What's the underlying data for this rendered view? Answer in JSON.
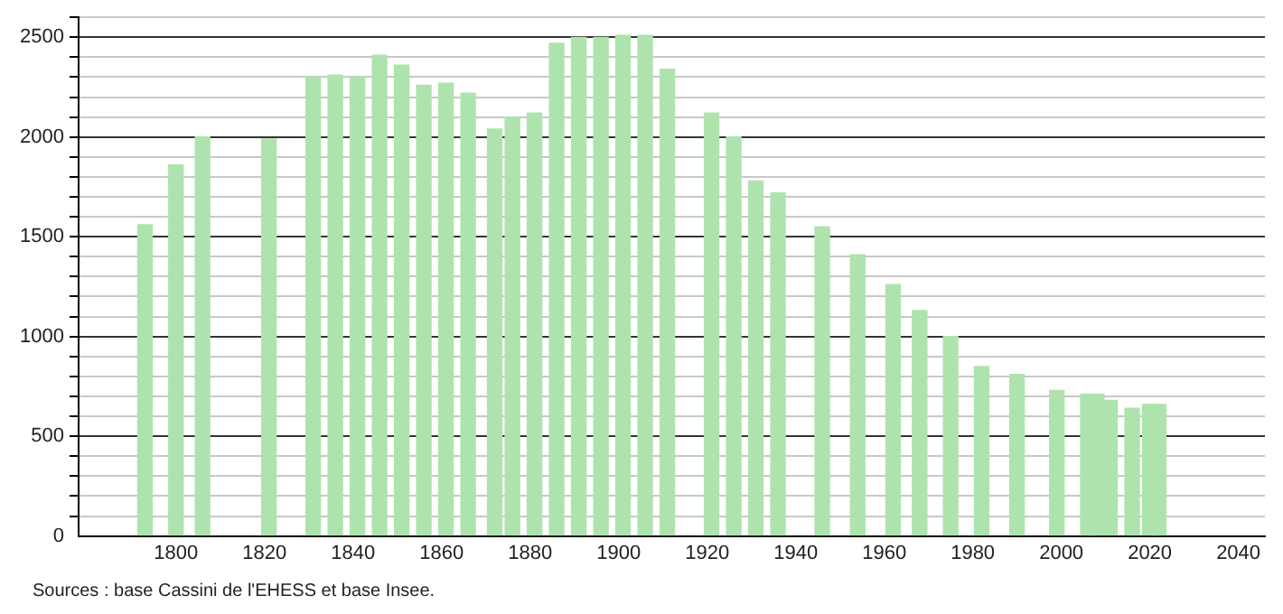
{
  "chart_data": {
    "type": "bar",
    "x": [
      1793,
      1800,
      1806,
      1821,
      1831,
      1836,
      1841,
      1846,
      1851,
      1856,
      1861,
      1866,
      1872,
      1876,
      1881,
      1886,
      1891,
      1896,
      1901,
      1906,
      1911,
      1921,
      1926,
      1931,
      1936,
      1946,
      1954,
      1962,
      1968,
      1975,
      1982,
      1990,
      1999,
      2006,
      2008,
      2011,
      2016,
      2020,
      2022
    ],
    "values": [
      1560,
      1860,
      2000,
      1990,
      2300,
      2310,
      2300,
      2410,
      2360,
      2260,
      2270,
      2220,
      2040,
      2100,
      2120,
      2470,
      2500,
      2500,
      2510,
      2510,
      2340,
      2120,
      2000,
      1780,
      1720,
      1550,
      1410,
      1260,
      1130,
      1000,
      850,
      810,
      730,
      710,
      710,
      680,
      640,
      660,
      660
    ],
    "color": "#aee3ae",
    "xlim": [
      1778,
      2046
    ],
    "xticks": [
      1800,
      1820,
      1840,
      1860,
      1880,
      1900,
      1920,
      1940,
      1960,
      1980,
      2000,
      2020,
      2040
    ],
    "ylim": [
      0,
      2600
    ],
    "yticks": [
      0,
      {
        "value": 100,
        "label": null
      },
      {
        "value": 200,
        "label": null
      },
      {
        "value": 300,
        "label": null
      },
      {
        "value": 400,
        "label": null
      },
      500,
      {
        "value": 600,
        "label": null
      },
      {
        "value": 700,
        "label": null
      },
      {
        "value": 800,
        "label": null
      },
      {
        "value": 900,
        "label": null
      },
      1000,
      {
        "value": 1100,
        "label": null
      },
      {
        "value": 1200,
        "label": null
      },
      {
        "value": 1300,
        "label": null
      },
      {
        "value": 1400,
        "label": null
      },
      1500,
      {
        "value": 1600,
        "label": null
      },
      {
        "value": 1700,
        "label": null
      },
      {
        "value": 1800,
        "label": null
      },
      {
        "value": 1900,
        "label": null
      },
      2000,
      {
        "value": 2100,
        "label": null
      },
      {
        "value": 2200,
        "label": null
      },
      {
        "value": 2300,
        "label": null
      },
      {
        "value": 2400,
        "label": null
      },
      2500,
      {
        "value": 2600,
        "label": null
      }
    ],
    "grid": "y",
    "annotations": [
      "Sources : base Cassini de l'EHESS et base Insee."
    ]
  }
}
